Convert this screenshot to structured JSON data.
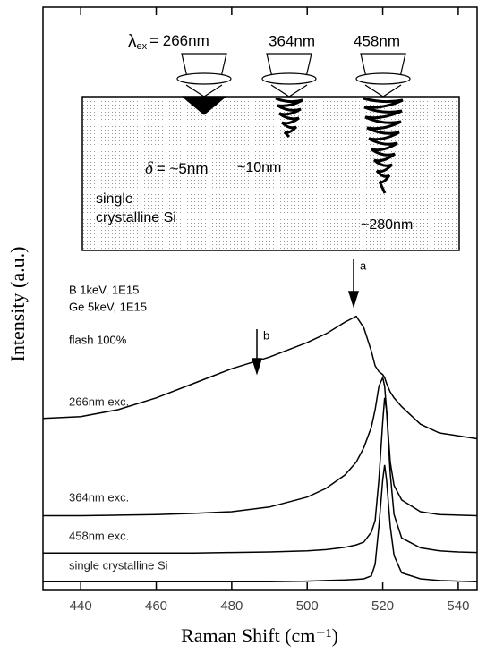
{
  "chart_data": {
    "type": "line",
    "xlabel": "Raman Shift (cm⁻¹)",
    "ylabel": "Intensity (a.u.)",
    "xlim": [
      430,
      545
    ],
    "ylim": [
      0,
      100
    ],
    "xticks": [
      440,
      460,
      480,
      500,
      520,
      540
    ],
    "x": [
      430,
      440,
      450,
      460,
      470,
      480,
      490,
      500,
      505,
      510,
      513,
      515,
      517,
      518,
      519,
      520,
      520.5,
      521,
      522,
      523,
      525,
      530,
      535,
      540,
      545
    ],
    "series": [
      {
        "name": "266nm exc.",
        "color": "#000000",
        "values": [
          29.5,
          29.8,
          31,
          33,
          35.5,
          38,
          40,
          42.5,
          44,
          46,
          47,
          45,
          41,
          38.5,
          37.5,
          37,
          36.5,
          35.5,
          34,
          33,
          31.5,
          28.5,
          27,
          26.5,
          26
        ]
      },
      {
        "name": "364nm exc.",
        "color": "#000000",
        "values": [
          12.8,
          12.8,
          12.9,
          13,
          13.2,
          13.5,
          14.3,
          16,
          17.5,
          19.8,
          22,
          24.5,
          28,
          31,
          35,
          36.5,
          35,
          31,
          22,
          18,
          15.5,
          13.5,
          13,
          12.9,
          12.8
        ]
      },
      {
        "name": "458nm exc.",
        "color": "#000000",
        "values": [
          6.4,
          6.4,
          6.4,
          6.4,
          6.4,
          6.5,
          6.6,
          6.8,
          7,
          7.4,
          7.8,
          8.3,
          10,
          12,
          19,
          29,
          33,
          31,
          20,
          13,
          9,
          7.3,
          6.8,
          6.6,
          6.5
        ]
      },
      {
        "name": "single crystalline Si",
        "color": "#000000",
        "values": [
          1.5,
          1.5,
          1.5,
          1.5,
          1.5,
          1.5,
          1.5,
          1.6,
          1.7,
          1.8,
          1.9,
          2,
          2.5,
          4.5,
          11,
          19,
          21.5,
          19,
          11,
          6,
          3,
          2,
          1.7,
          1.6,
          1.5
        ]
      }
    ],
    "annotations": {
      "sample": [
        "B 1keV, 1E15",
        "Ge 5keV, 1E15",
        "flash 100%"
      ],
      "arrow_a": "a",
      "arrow_b": "b"
    },
    "inset": {
      "excitation": {
        "symbol": "λ",
        "subscript": "ex",
        "text": "= 266nm"
      },
      "wavelengths": [
        "364nm",
        "458nm"
      ],
      "depth_symbol": "δ",
      "depths": [
        "= ~5nm",
        "~10nm",
        "~280nm"
      ],
      "material": [
        "single",
        "crystalline Si"
      ]
    }
  }
}
